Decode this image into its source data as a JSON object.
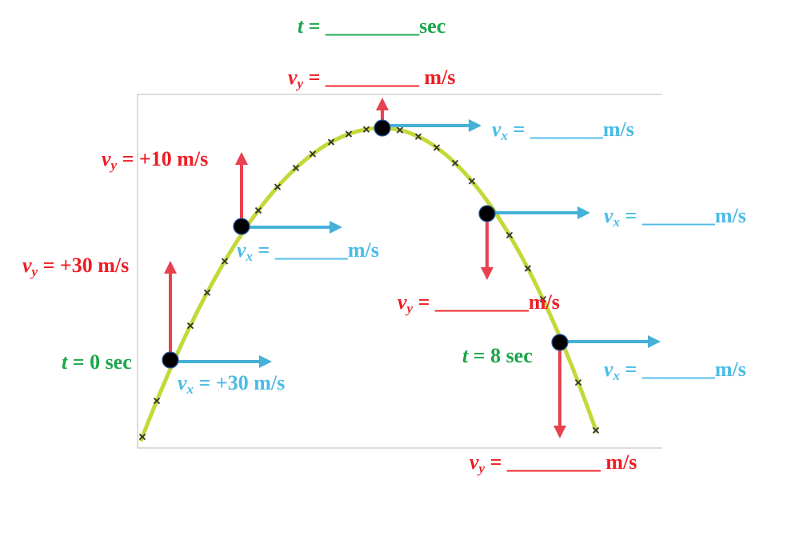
{
  "colors": {
    "vy": "#ee1c24",
    "time": "#1aa64a",
    "vx": "#4bbbe6",
    "path": "#c5d83a",
    "vy_arrow": "#e8414f",
    "vx_arrow": "#45b0d8"
  },
  "labels": {
    "t_top": {
      "var": "t",
      "eq": " = ",
      "blank": "_________",
      "unit": "sec"
    },
    "vy_top": {
      "var": "v",
      "sub": "y",
      "eq": " = ",
      "blank": "_________",
      "unit": " m/s"
    },
    "vy_10": {
      "var": "v",
      "sub": "y",
      "eq": " = ",
      "value": "+10 m/s"
    },
    "vy_30": {
      "var": "v",
      "sub": "y",
      "eq": " = ",
      "value": "+30 m/s"
    },
    "t_0": {
      "var": "t",
      "eq": " = ",
      "value": "0 sec"
    },
    "vx_30": {
      "var": "v",
      "sub": "x",
      "eq": " = ",
      "value": "+30 m/s"
    },
    "vx_2": {
      "var": "v",
      "sub": "x",
      "eq": " = ",
      "blank": "_______",
      "unit": "m/s"
    },
    "vx_top": {
      "var": "v",
      "sub": "x",
      "eq": " = ",
      "blank": "_______",
      "unit": "m/s"
    },
    "vx_4": {
      "var": "v",
      "sub": "x",
      "eq": " = ",
      "blank": "_______",
      "unit": "m/s"
    },
    "vy_4": {
      "var": "v",
      "sub": "y",
      "eq": " = ",
      "blank": "_________",
      "unit": "m/s"
    },
    "t_8": {
      "var": "t",
      "eq": " = ",
      "value": "8 sec"
    },
    "vx_8": {
      "var": "v",
      "sub": "x",
      "eq": " = ",
      "blank": "_______",
      "unit": "m/s"
    },
    "vy_8": {
      "var": "v",
      "sub": "y",
      "eq": " = ",
      "blank": "_________",
      "unit": " m/s"
    }
  }
}
